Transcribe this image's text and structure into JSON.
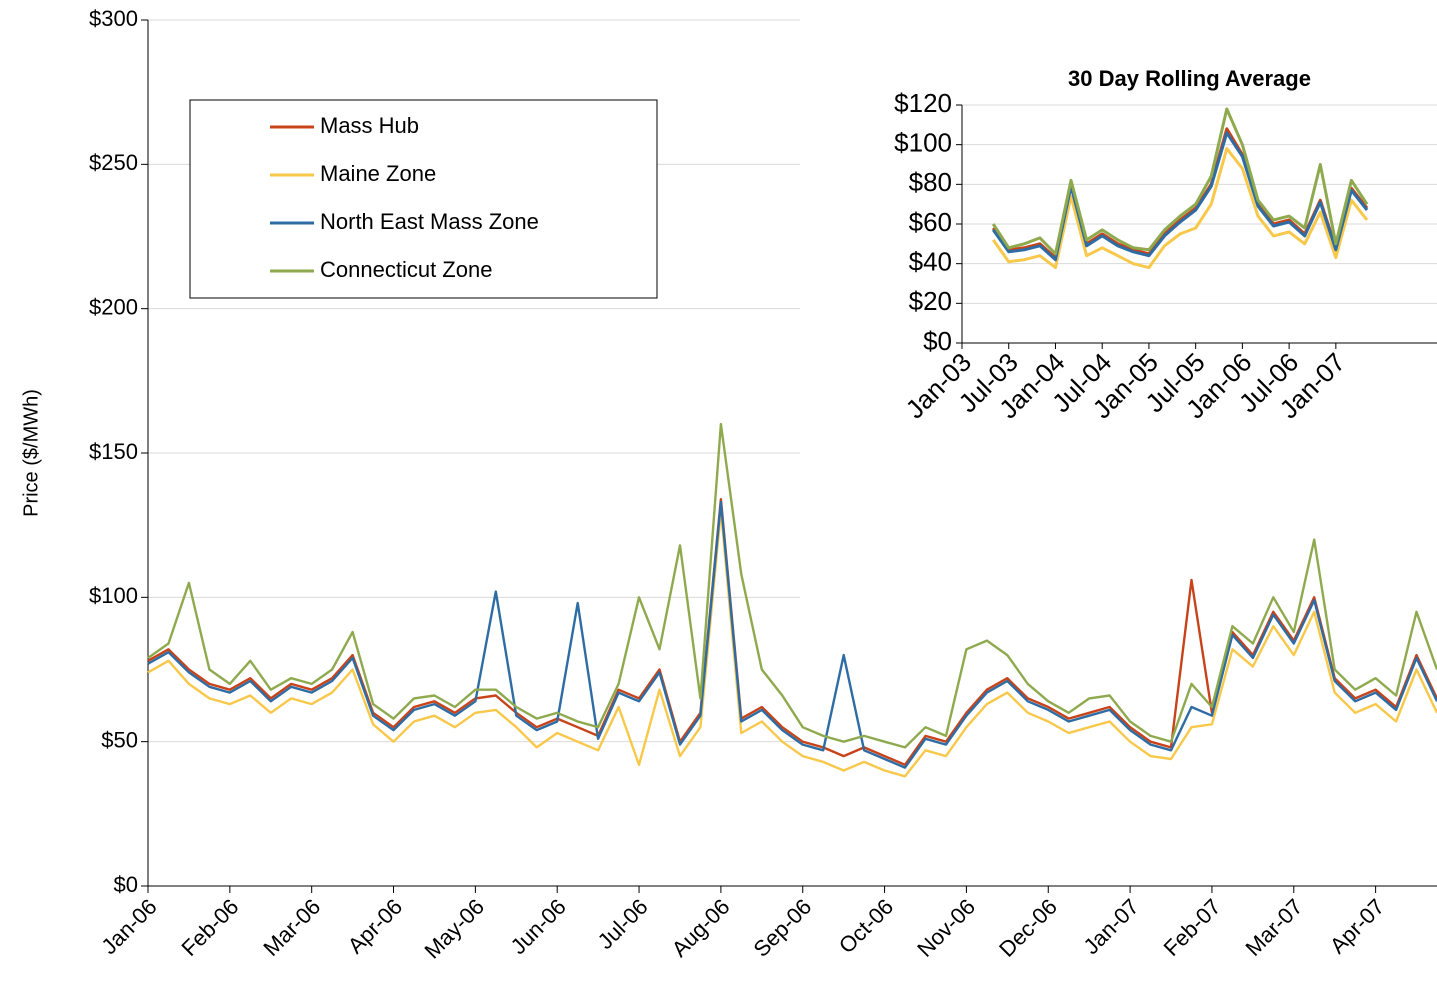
{
  "chart_data": [
    {
      "type": "line",
      "y_label": "Price ($/MWh)",
      "grid": true,
      "legend": "upper left",
      "categories": [
        "Jan-06",
        null,
        null,
        null,
        "Feb-06",
        null,
        null,
        null,
        "Mar-06",
        null,
        null,
        null,
        "Apr-06",
        null,
        null,
        null,
        "May-06",
        null,
        null,
        null,
        "Jun-06",
        null,
        null,
        null,
        "Jul-06",
        null,
        null,
        null,
        "Aug-06",
        null,
        null,
        null,
        "Sep-06",
        null,
        null,
        null,
        "Oct-06",
        null,
        null,
        null,
        "Nov-06",
        null,
        null,
        null,
        "Dec-06",
        null,
        null,
        null,
        "Jan-07",
        null,
        null,
        null,
        "Feb-07",
        null,
        null,
        null,
        "Mar-07",
        null,
        null,
        null,
        "Apr-07",
        null,
        null,
        null
      ],
      "ylim": [
        0,
        300
      ],
      "yticks": [
        {
          "value": 0,
          "label": "$0"
        },
        {
          "value": 50,
          "label": "$50"
        },
        {
          "value": 100,
          "label": "$100"
        },
        {
          "value": 150,
          "label": "$150"
        },
        {
          "value": 200,
          "label": "$200"
        },
        {
          "value": 250,
          "label": "$250"
        },
        {
          "value": 300,
          "label": "$300"
        }
      ],
      "series": [
        {
          "name": "Mass Hub",
          "color": "#c8431a",
          "values": [
            78,
            82,
            75,
            70,
            68,
            72,
            65,
            70,
            68,
            72,
            80,
            60,
            55,
            62,
            64,
            60,
            65,
            66,
            60,
            55,
            58,
            55,
            52,
            68,
            65,
            75,
            50,
            60,
            134,
            58,
            62,
            55,
            50,
            48,
            45,
            48,
            45,
            42,
            52,
            50,
            60,
            68,
            72,
            65,
            62,
            58,
            60,
            62,
            55,
            50,
            48,
            106,
            60,
            88,
            80,
            95,
            85,
            100,
            72,
            65,
            68,
            62,
            80,
            65
          ]
        },
        {
          "name": "Maine Zone",
          "color": "#f8c84a",
          "values": [
            74,
            78,
            70,
            65,
            63,
            66,
            60,
            65,
            63,
            67,
            75,
            56,
            50,
            57,
            59,
            55,
            60,
            61,
            55,
            48,
            53,
            50,
            47,
            62,
            42,
            68,
            45,
            55,
            130,
            53,
            57,
            50,
            45,
            43,
            40,
            43,
            40,
            38,
            47,
            45,
            55,
            63,
            67,
            60,
            57,
            53,
            55,
            57,
            50,
            45,
            44,
            55,
            56,
            82,
            76,
            90,
            80,
            95,
            67,
            60,
            63,
            57,
            75,
            60
          ]
        },
        {
          "name": "North East Mass Zone",
          "color": "#2e6ca4",
          "values": [
            77,
            81,
            74,
            69,
            67,
            71,
            64,
            69,
            67,
            71,
            79,
            59,
            54,
            61,
            63,
            59,
            64,
            102,
            59,
            54,
            57,
            98,
            51,
            67,
            64,
            74,
            49,
            59,
            133,
            57,
            61,
            54,
            49,
            47,
            80,
            47,
            44,
            41,
            51,
            49,
            59,
            67,
            71,
            64,
            61,
            57,
            59,
            61,
            54,
            49,
            47,
            62,
            59,
            87,
            79,
            94,
            84,
            99,
            71,
            64,
            67,
            61,
            79,
            64
          ]
        },
        {
          "name": "Connecticut Zone",
          "color": "#8faa4e",
          "values": [
            79,
            84,
            105,
            75,
            70,
            78,
            68,
            72,
            70,
            75,
            88,
            63,
            58,
            65,
            66,
            62,
            68,
            68,
            62,
            58,
            60,
            57,
            55,
            70,
            100,
            82,
            118,
            65,
            160,
            108,
            75,
            66,
            55,
            52,
            50,
            52,
            50,
            48,
            55,
            52,
            82,
            85,
            80,
            70,
            64,
            60,
            65,
            66,
            57,
            52,
            50,
            70,
            62,
            90,
            84,
            100,
            88,
            120,
            75,
            68,
            72,
            66,
            95,
            75
          ]
        }
      ]
    },
    {
      "type": "line",
      "title": "30 Day Rolling Average",
      "grid": true,
      "categories": [
        "Jan-03",
        null,
        null,
        "Jul-03",
        null,
        null,
        "Jan-04",
        null,
        null,
        "Jul-04",
        null,
        null,
        "Jan-05",
        null,
        null,
        "Jul-05",
        null,
        null,
        "Jan-06",
        null,
        null,
        "Jul-06",
        null,
        null,
        "Jan-07",
        null,
        null
      ],
      "ylim": [
        0,
        120
      ],
      "yticks": [
        {
          "value": 0,
          "label": "$0"
        },
        {
          "value": 20,
          "label": "$20"
        },
        {
          "value": 40,
          "label": "$40"
        },
        {
          "value": 60,
          "label": "$60"
        },
        {
          "value": 80,
          "label": "$80"
        },
        {
          "value": 100,
          "label": "$100"
        },
        {
          "value": 120,
          "label": "$120"
        }
      ],
      "series": [
        {
          "color": "#c8431a",
          "values": [
            null,
            null,
            58,
            47,
            48,
            50,
            43,
            80,
            50,
            55,
            50,
            47,
            45,
            55,
            62,
            68,
            80,
            108,
            95,
            70,
            60,
            62,
            55,
            72,
            48,
            78,
            68
          ]
        },
        {
          "color": "#f8c84a",
          "values": [
            null,
            null,
            52,
            41,
            42,
            44,
            38,
            74,
            44,
            48,
            44,
            40,
            38,
            49,
            55,
            58,
            70,
            98,
            88,
            64,
            54,
            56,
            50,
            66,
            43,
            72,
            62
          ]
        },
        {
          "color": "#2e6ca4",
          "values": [
            null,
            null,
            57,
            46,
            47,
            49,
            42,
            79,
            49,
            54,
            49,
            46,
            44,
            54,
            61,
            67,
            79,
            106,
            94,
            69,
            59,
            61,
            54,
            71,
            47,
            77,
            67
          ]
        },
        {
          "color": "#8faa4e",
          "values": [
            null,
            null,
            60,
            48,
            50,
            53,
            45,
            82,
            52,
            57,
            52,
            48,
            47,
            57,
            64,
            70,
            84,
            118,
            100,
            72,
            62,
            64,
            58,
            90,
            50,
            82,
            70
          ]
        }
      ]
    }
  ]
}
